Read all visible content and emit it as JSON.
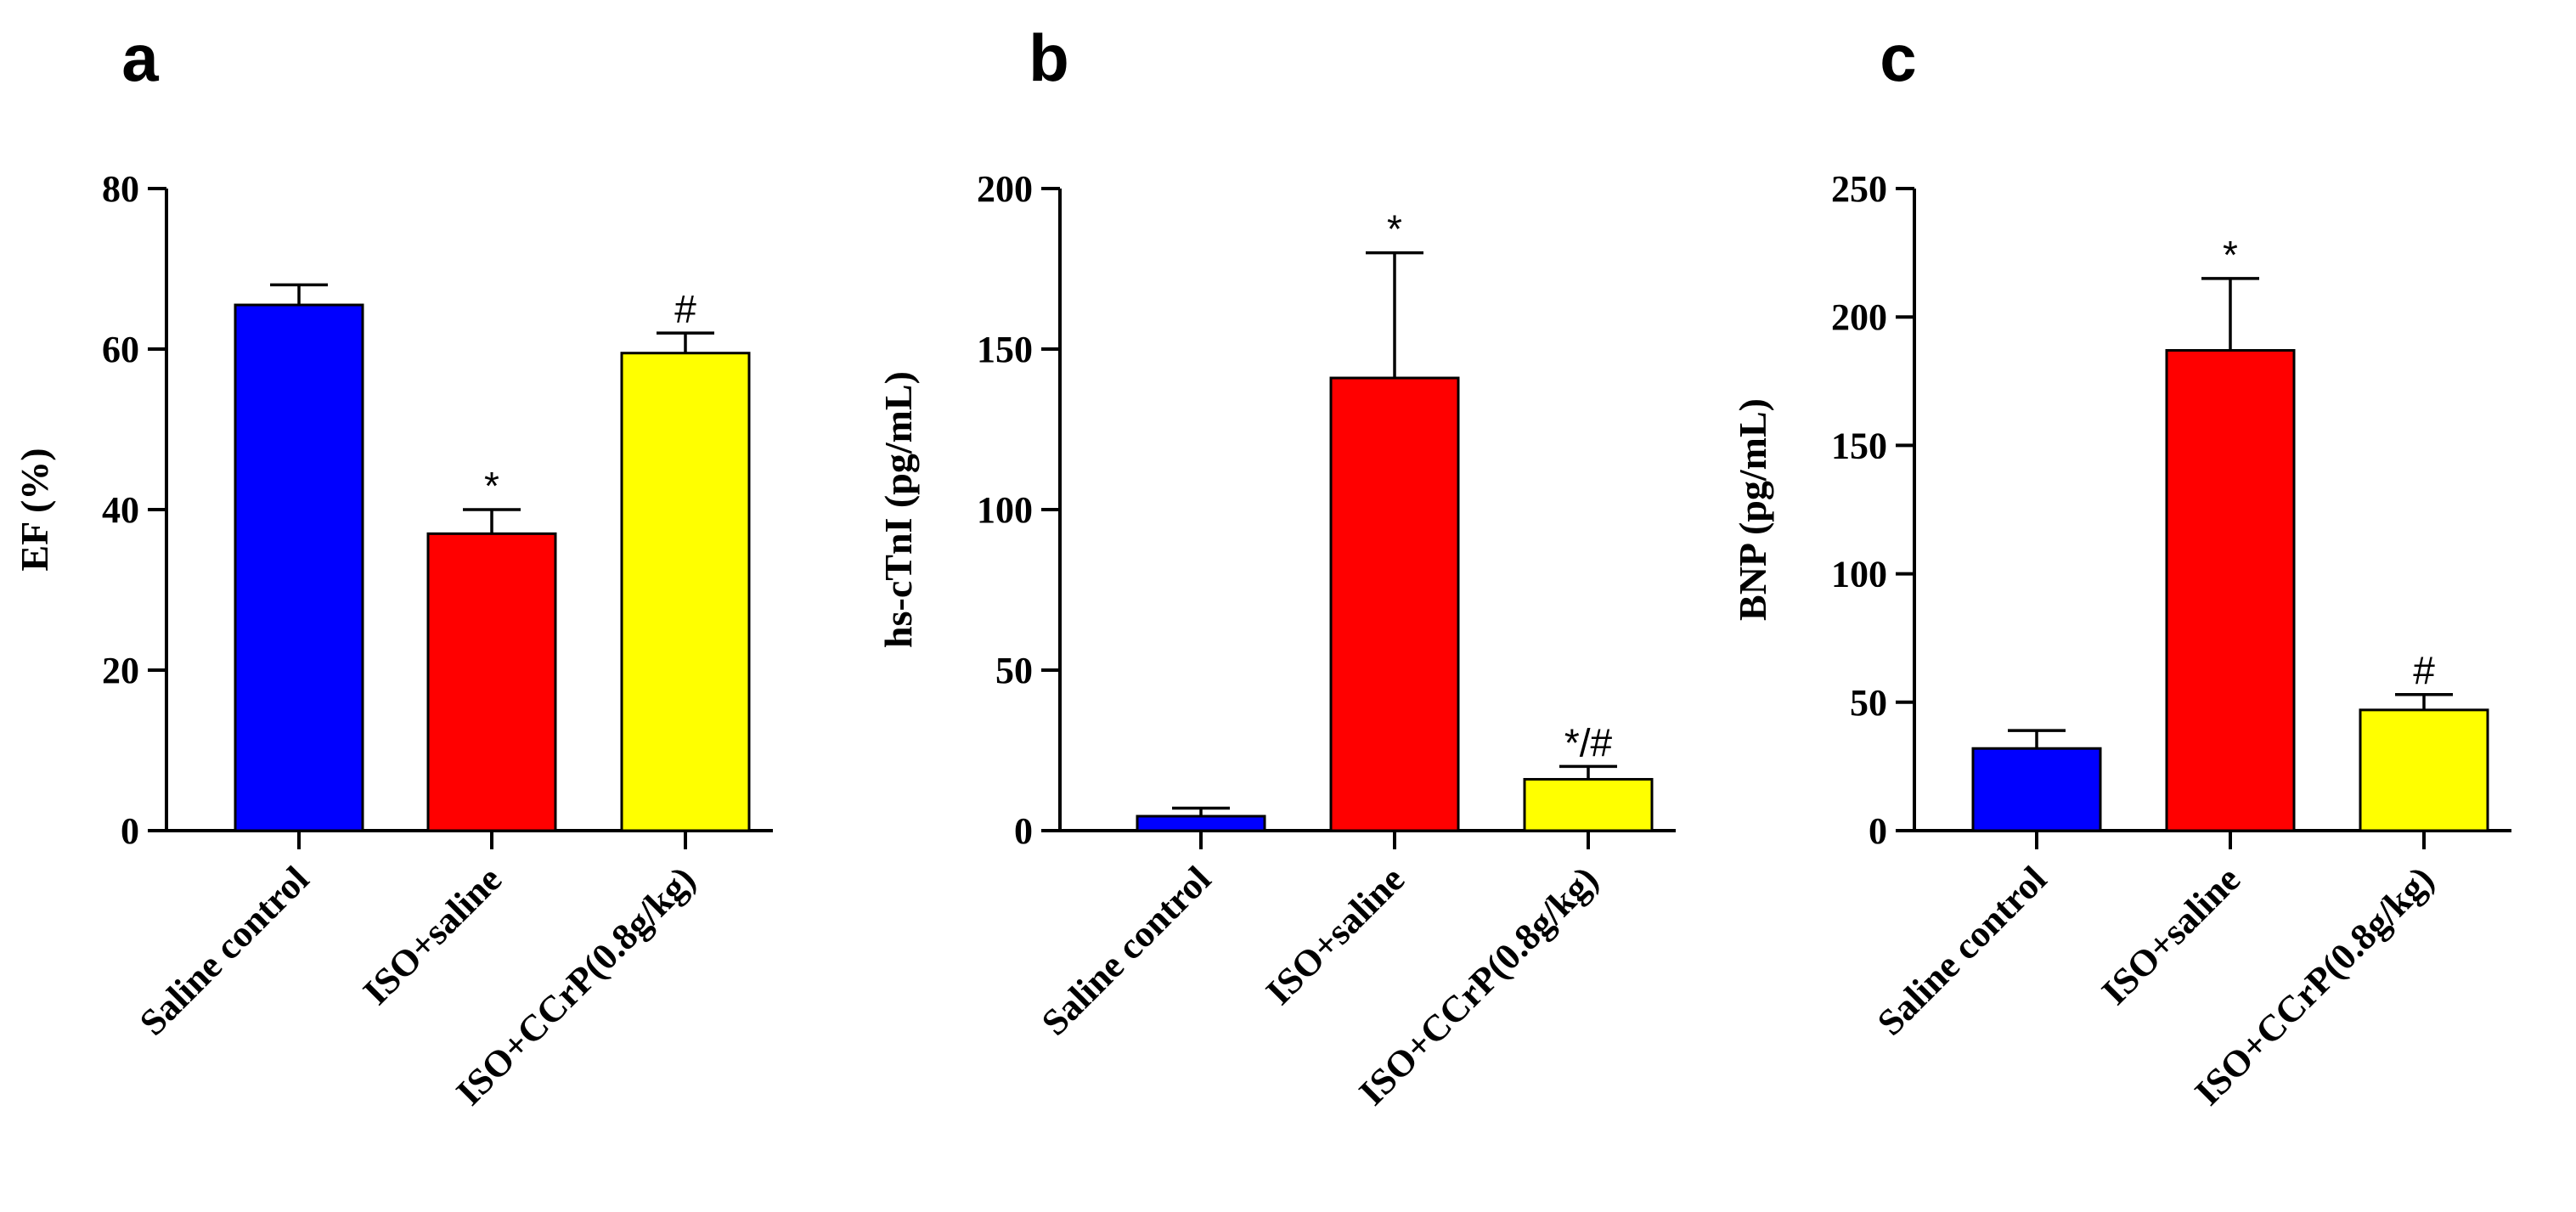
{
  "chart_data": [
    {
      "type": "bar",
      "panel": "a",
      "title": "",
      "xlabel": "",
      "ylabel": "EF (%)",
      "ylim": [
        0,
        80
      ],
      "yticks": [
        0,
        20,
        40,
        60,
        80
      ],
      "categories": [
        "Saline control",
        "ISO+saline",
        "ISO+CCrP(0.8g/kg)"
      ],
      "values": [
        65.5,
        37,
        59.5
      ],
      "errors": [
        2.5,
        3,
        2.5
      ],
      "colors": [
        "#0000ff",
        "#ff0000",
        "#ffff00"
      ],
      "annotations": [
        "",
        "*",
        "#"
      ]
    },
    {
      "type": "bar",
      "panel": "b",
      "title": "",
      "xlabel": "",
      "ylabel": "hs-cTnI (pg/mL)",
      "ylim": [
        0,
        200
      ],
      "yticks": [
        0,
        50,
        100,
        150,
        200
      ],
      "categories": [
        "Saline control",
        "ISO+saline",
        "ISO+CCrP(0.8g/kg)"
      ],
      "values": [
        4.5,
        141,
        16
      ],
      "errors": [
        2.5,
        39,
        4
      ],
      "colors": [
        "#0000ff",
        "#ff0000",
        "#ffff00"
      ],
      "annotations": [
        "",
        "*",
        "*/#"
      ]
    },
    {
      "type": "bar",
      "panel": "c",
      "title": "",
      "xlabel": "",
      "ylabel": "BNP (pg/mL)",
      "ylim": [
        0,
        250
      ],
      "yticks": [
        0,
        50,
        100,
        150,
        200,
        250
      ],
      "categories": [
        "Saline control",
        "ISO+saline",
        "ISO+CCrP(0.8g/kg)"
      ],
      "values": [
        32,
        187,
        47
      ],
      "errors": [
        7,
        28,
        6
      ],
      "colors": [
        "#0000ff",
        "#ff0000",
        "#ffff00"
      ],
      "annotations": [
        "",
        "*",
        "#"
      ]
    }
  ]
}
